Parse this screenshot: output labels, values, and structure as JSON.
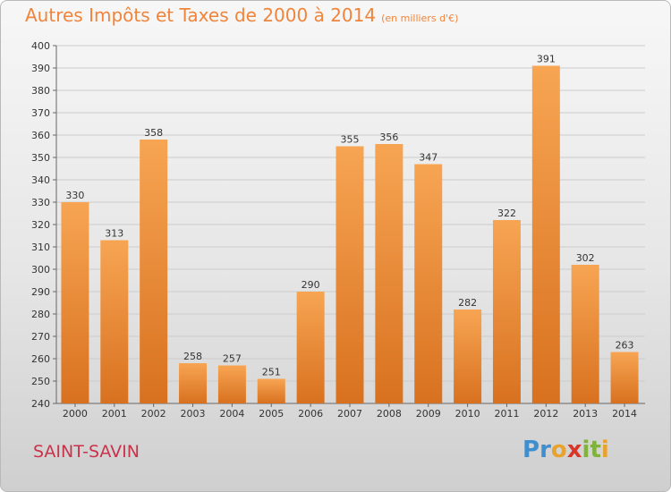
{
  "header": {
    "title": "Autres Impôts et Taxes de 2000 à 2014",
    "unit": "(en milliers d'€)"
  },
  "footer": {
    "commune": "SAINT-SAVIN",
    "logo": "Proxiti",
    "logo_letters": [
      "P",
      "r",
      "o",
      "x",
      "i",
      "t",
      "i"
    ],
    "logo_colors": [
      "#3f8fcf",
      "#3f8fcf",
      "#e9a22b",
      "#d9362a",
      "#7fb33a",
      "#7fb33a",
      "#e9a22b"
    ]
  },
  "colors": {
    "bar_light": "#f7a553",
    "bar_dark": "#d8711f",
    "title": "#f0843a",
    "commune": "#c8344c",
    "grid": "#cccccc"
  },
  "chart_data": {
    "type": "bar",
    "title": "Autres Impôts et Taxes de 2000 à 2014",
    "subtitle": "(en milliers d'€)",
    "xlabel": "",
    "ylabel": "",
    "categories": [
      "2000",
      "2001",
      "2002",
      "2003",
      "2004",
      "2005",
      "2006",
      "2007",
      "2008",
      "2009",
      "2010",
      "2011",
      "2012",
      "2013",
      "2014"
    ],
    "values": [
      330,
      313,
      358,
      258,
      257,
      251,
      290,
      355,
      356,
      347,
      282,
      322,
      391,
      302,
      263
    ],
    "ylim": [
      240,
      400
    ],
    "yticks": [
      240,
      250,
      260,
      270,
      280,
      290,
      300,
      310,
      320,
      330,
      340,
      350,
      360,
      370,
      380,
      390,
      400
    ],
    "grid": true,
    "data_labels": true
  }
}
